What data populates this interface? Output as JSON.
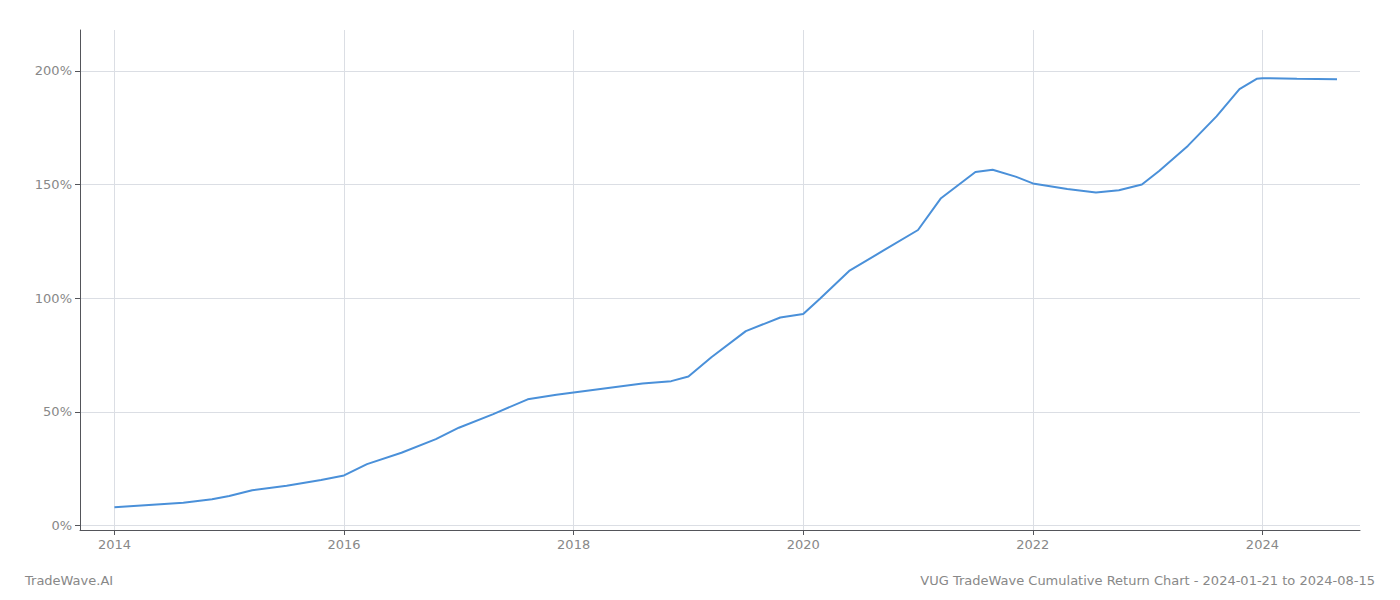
{
  "chart_data": {
    "type": "line",
    "title": "VUG TradeWave Cumulative Return Chart - 2024-01-21 to 2024-08-15",
    "annotations": [
      "TradeWave.AI"
    ],
    "x": [
      2014.0,
      2014.3,
      2014.6,
      2014.85,
      2015.0,
      2015.2,
      2015.5,
      2015.8,
      2016.0,
      2016.2,
      2016.5,
      2016.8,
      2017.0,
      2017.3,
      2017.6,
      2017.85,
      2018.0,
      2018.3,
      2018.6,
      2018.85,
      2019.0,
      2019.2,
      2019.5,
      2019.8,
      2020.0,
      2020.15,
      2020.4,
      2020.7,
      2021.0,
      2021.2,
      2021.5,
      2021.65,
      2021.85,
      2022.0,
      2022.3,
      2022.55,
      2022.75,
      2022.95,
      2023.1,
      2023.35,
      2023.6,
      2023.8,
      2023.95,
      2024.0,
      2024.3,
      2024.65
    ],
    "values": [
      0.08,
      0.09,
      0.1,
      0.115,
      0.13,
      0.155,
      0.175,
      0.2,
      0.22,
      0.27,
      0.32,
      0.38,
      0.43,
      0.49,
      0.555,
      0.575,
      0.585,
      0.605,
      0.625,
      0.635,
      0.655,
      0.74,
      0.855,
      0.915,
      0.93,
      1.0,
      1.12,
      1.21,
      1.3,
      1.44,
      1.555,
      1.565,
      1.535,
      1.505,
      1.48,
      1.465,
      1.475,
      1.5,
      1.56,
      1.67,
      1.8,
      1.92,
      1.965,
      1.968,
      1.965,
      1.963
    ],
    "color": "#4a90d9",
    "xlim": [
      2013.7,
      2024.85
    ],
    "xticks": [
      2014,
      2016,
      2018,
      2020,
      2022,
      2024
    ],
    "ylim": [
      -0.02,
      2.18
    ],
    "yticks": [
      {
        "value": 0.0,
        "label": "0%"
      },
      {
        "value": 0.5,
        "label": "50%"
      },
      {
        "value": 1.0,
        "label": "100%"
      },
      {
        "value": 1.5,
        "label": "150%"
      },
      {
        "value": 2.0,
        "label": "200%"
      }
    ],
    "grid": true
  }
}
